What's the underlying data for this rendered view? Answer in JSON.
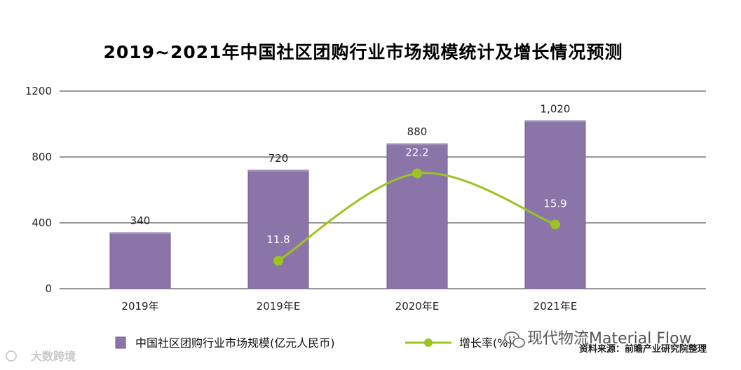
{
  "chart_data": {
    "type": "bar",
    "title": "2019~2021年中国社区团购行业市场规模统计及增长情况预测",
    "categories": [
      "2019年",
      "2019年E",
      "2020年E",
      "2021年E"
    ],
    "ylim": [
      0,
      1200
    ],
    "yticks": [
      "0",
      "400",
      "800",
      "1200"
    ],
    "grid": true,
    "series": [
      {
        "name": "中国社区团购行业市场规模(亿元人民币)",
        "type": "bar",
        "values": [
          340,
          720,
          880,
          1020
        ],
        "labels": [
          "340",
          "720",
          "880",
          "1,020"
        ]
      },
      {
        "name": "增长率(%)",
        "type": "line",
        "points": [
          {
            "category_index": 1,
            "rate": 11.8,
            "y_axis_value": 170,
            "label": "11.8"
          },
          {
            "category_index": 2,
            "rate": 22.2,
            "y_axis_value": 700,
            "label": "22.2"
          },
          {
            "category_index": 3,
            "rate": 15.9,
            "y_axis_value": 390,
            "label": "15.9"
          }
        ]
      }
    ],
    "legend_position": "bottom",
    "colors": {
      "bar": "#8b75a8",
      "bar_edge": "#6f5a90",
      "line": "#9bc423",
      "grid": "#333333"
    }
  },
  "watermark": {
    "text": "现代物流Material Flow",
    "icon": "wechat-icon"
  },
  "source": "资料来源：前瞻产业研究院整理",
  "corner_logo": "大数跨境"
}
